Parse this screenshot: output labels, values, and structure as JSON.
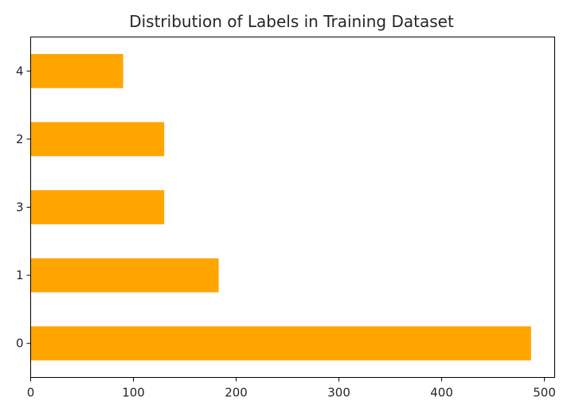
{
  "chart_data": {
    "type": "bar",
    "orientation": "horizontal",
    "title": "Distribution of Labels in Training Dataset",
    "xlabel": "",
    "ylabel": "",
    "categories": [
      "0",
      "1",
      "3",
      "2",
      "4"
    ],
    "values": [
      487,
      183,
      130,
      130,
      90
    ],
    "xlim": [
      0,
      510
    ],
    "xticks": [
      0,
      100,
      200,
      300,
      400,
      500
    ],
    "grid": false,
    "legend": "none",
    "bar_color": "#ffa500"
  }
}
